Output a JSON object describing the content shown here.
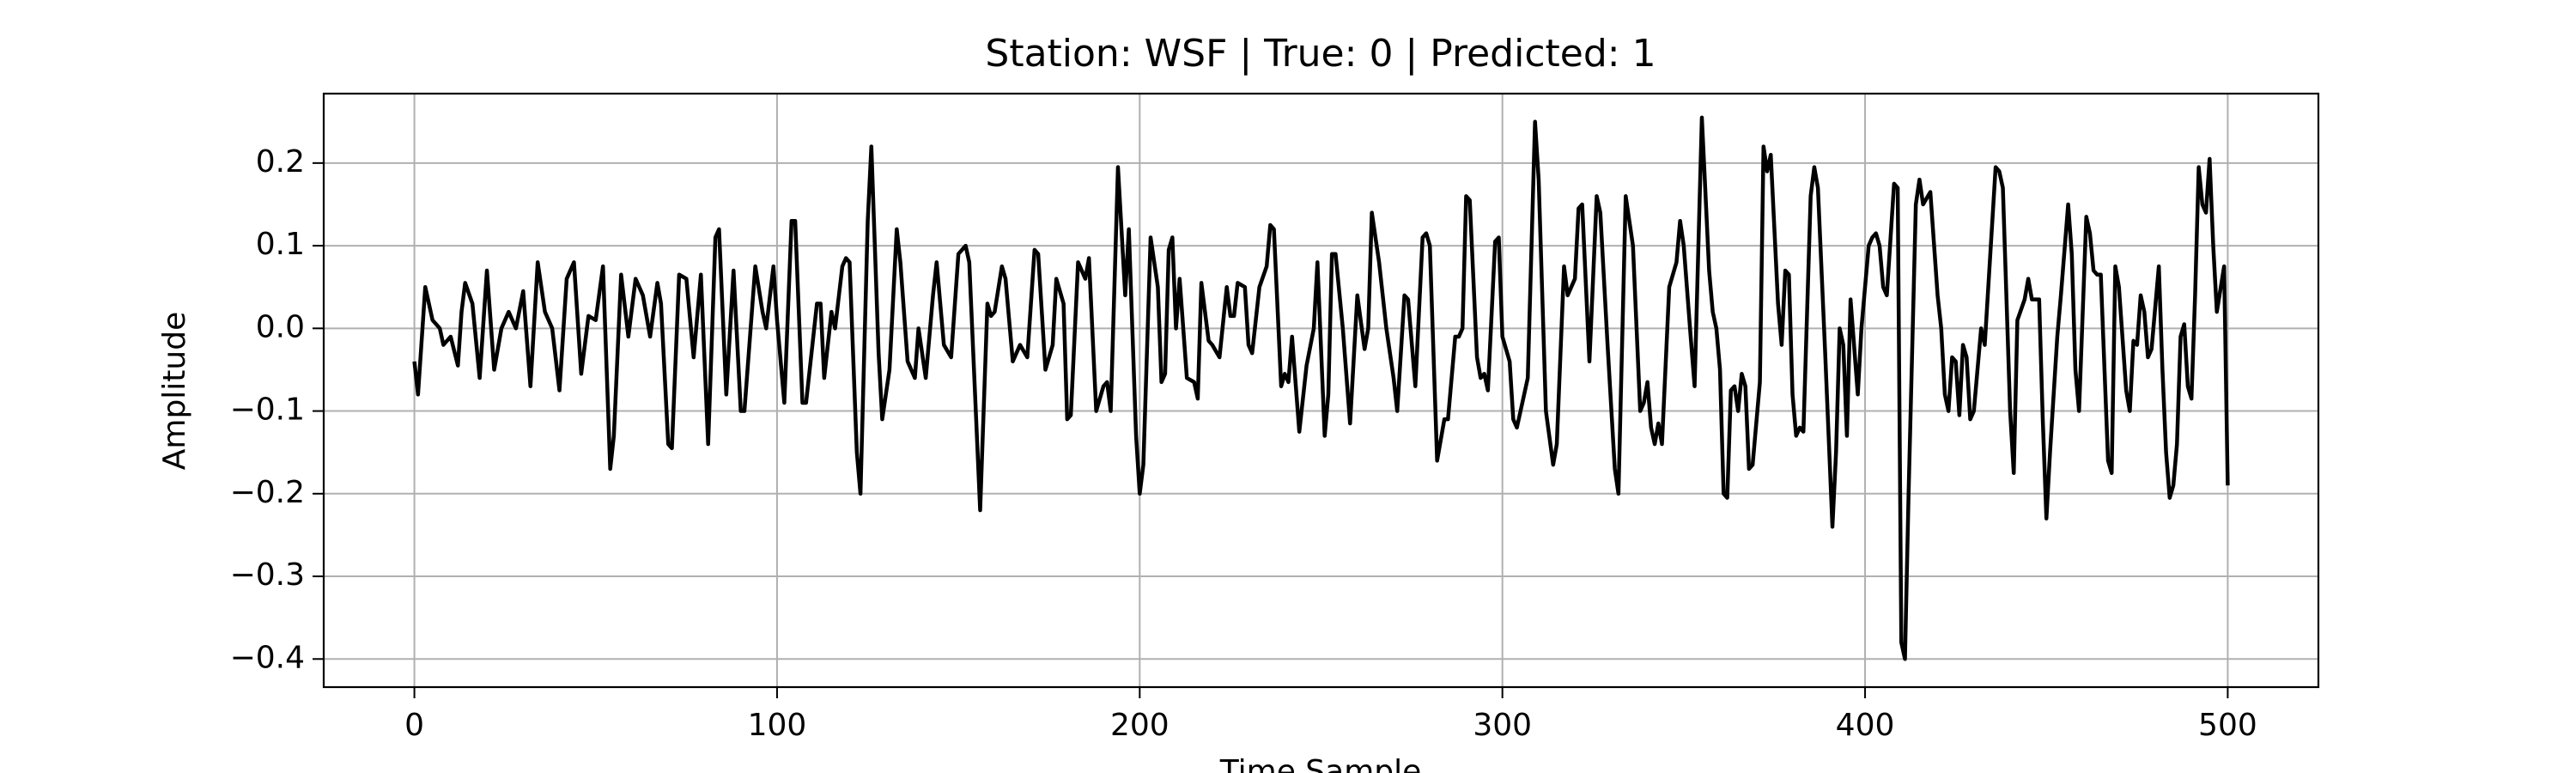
{
  "chart_data": {
    "type": "line",
    "title": "Station: WSF | True: 0 | Predicted: 1",
    "xlabel": "Time Sample",
    "ylabel": "Amplitude",
    "color": "#000000",
    "grid": true,
    "xlim": [
      -25,
      525
    ],
    "ylim": [
      -0.434,
      0.284
    ],
    "xticks": [
      0,
      100,
      200,
      300,
      400,
      500
    ],
    "yticks": [
      {
        "value": -0.4,
        "label": "−0.4"
      },
      {
        "value": -0.3,
        "label": "−0.3"
      },
      {
        "value": -0.2,
        "label": "−0.2"
      },
      {
        "value": -0.1,
        "label": "−0.1"
      },
      {
        "value": 0,
        "label": "0.0"
      },
      0.1,
      0.2
    ],
    "x": [
      0,
      1,
      3,
      5,
      7,
      8,
      10,
      12,
      13,
      14,
      16,
      18,
      20,
      22,
      24,
      26,
      28,
      30,
      32,
      34,
      36,
      38,
      40,
      42,
      44,
      46,
      48,
      50,
      52,
      54,
      55,
      57,
      59,
      61,
      63,
      65,
      67,
      68,
      70,
      71,
      73,
      75,
      77,
      79,
      81,
      83,
      84,
      86,
      88,
      90,
      91,
      94,
      96,
      97,
      99,
      100,
      102,
      104,
      105,
      107,
      108,
      111,
      112,
      113,
      115,
      116,
      118,
      119,
      120,
      122,
      123,
      125,
      126,
      128,
      129,
      131,
      133,
      134,
      136,
      138,
      139,
      141,
      143,
      144,
      146,
      148,
      150,
      152,
      153,
      156,
      158,
      159,
      160,
      162,
      163,
      165,
      167,
      169,
      171,
      172,
      174,
      176,
      177,
      179,
      180,
      181,
      183,
      185,
      186,
      188,
      190,
      191,
      192,
      194,
      196,
      197,
      199,
      200,
      201,
      203,
      205,
      206,
      207,
      208,
      209,
      210,
      211,
      213,
      215,
      216,
      217,
      219,
      220,
      222,
      224,
      225,
      226,
      227,
      229,
      230,
      231,
      233,
      235,
      236,
      237,
      239,
      240,
      241,
      242,
      244,
      246,
      248,
      249,
      251,
      252,
      253,
      254,
      256,
      258,
      260,
      262,
      263,
      264,
      266,
      268,
      270,
      271,
      273,
      274,
      276,
      278,
      279,
      280,
      282,
      284,
      285,
      287,
      288,
      289,
      290,
      291,
      293,
      294,
      295,
      296,
      298,
      299,
      300,
      302,
      303,
      304,
      307,
      309,
      310,
      312,
      314,
      315,
      317,
      318,
      320,
      321,
      322,
      324,
      326,
      327,
      329,
      331,
      332,
      334,
      336,
      338,
      339,
      340,
      341,
      342,
      343,
      344,
      346,
      348,
      349,
      350,
      352,
      353,
      355,
      357,
      358,
      359,
      360,
      361,
      362,
      363,
      364,
      365,
      366,
      367,
      368,
      369,
      371,
      372,
      373,
      374,
      376,
      377,
      378,
      379,
      380,
      381,
      382,
      383,
      385,
      386,
      387,
      389,
      391,
      392,
      393,
      394,
      395,
      396,
      398,
      399,
      401,
      402,
      403,
      404,
      405,
      406,
      408,
      409,
      410,
      411,
      412,
      414,
      415,
      416,
      418,
      420,
      421,
      422,
      423,
      424,
      425,
      426,
      427,
      428,
      429,
      430,
      432,
      433,
      436,
      437,
      438,
      440,
      441,
      442,
      444,
      445,
      446,
      448,
      449,
      450,
      451,
      453,
      454,
      456,
      457,
      458,
      459,
      461,
      462,
      463,
      464,
      465,
      467,
      468,
      469,
      470,
      472,
      473,
      474,
      475,
      476,
      477,
      478,
      479,
      481,
      482,
      483,
      484,
      485,
      486,
      487,
      488,
      489,
      490,
      491,
      492,
      493,
      494,
      495,
      496,
      497,
      499,
      500
    ],
    "values": [
      -0.04,
      -0.08,
      0.05,
      0.01,
      0.0,
      -0.02,
      -0.01,
      -0.045,
      0.02,
      0.055,
      0.03,
      -0.06,
      0.07,
      -0.05,
      0.0,
      0.02,
      0.0,
      0.045,
      -0.07,
      0.08,
      0.02,
      0.0,
      -0.075,
      0.06,
      0.08,
      -0.055,
      0.015,
      0.01,
      0.075,
      -0.17,
      -0.13,
      0.065,
      -0.01,
      0.06,
      0.04,
      -0.01,
      0.055,
      0.03,
      -0.14,
      -0.145,
      0.065,
      0.06,
      -0.035,
      0.065,
      -0.14,
      0.11,
      0.12,
      -0.08,
      0.07,
      -0.1,
      -0.1,
      0.075,
      0.02,
      0.0,
      0.075,
      0.01,
      -0.09,
      0.13,
      0.13,
      -0.09,
      -0.09,
      0.03,
      0.03,
      -0.06,
      0.02,
      0.0,
      0.075,
      0.085,
      0.08,
      -0.15,
      -0.2,
      0.13,
      0.22,
      -0.03,
      -0.11,
      -0.05,
      0.12,
      0.08,
      -0.04,
      -0.06,
      0.0,
      -0.06,
      0.04,
      0.08,
      -0.02,
      -0.035,
      0.09,
      0.1,
      0.08,
      -0.22,
      0.03,
      0.015,
      0.02,
      0.075,
      0.06,
      -0.04,
      -0.02,
      -0.035,
      0.095,
      0.09,
      -0.05,
      -0.02,
      0.06,
      0.03,
      -0.11,
      -0.105,
      0.08,
      0.06,
      0.085,
      -0.1,
      -0.07,
      -0.065,
      -0.1,
      0.195,
      0.04,
      0.12,
      -0.13,
      -0.2,
      -0.165,
      0.11,
      0.05,
      -0.065,
      -0.055,
      0.095,
      0.11,
      0.0,
      0.06,
      -0.06,
      -0.065,
      -0.085,
      0.055,
      -0.015,
      -0.02,
      -0.035,
      0.05,
      0.015,
      0.015,
      0.055,
      0.05,
      -0.02,
      -0.03,
      0.05,
      0.075,
      0.125,
      0.12,
      -0.07,
      -0.055,
      -0.065,
      -0.01,
      -0.125,
      -0.045,
      0.0,
      0.08,
      -0.13,
      -0.08,
      0.09,
      0.09,
      0.0,
      -0.115,
      0.04,
      -0.025,
      0.0,
      0.14,
      0.08,
      0.0,
      -0.06,
      -0.1,
      0.04,
      0.035,
      -0.07,
      0.11,
      0.115,
      0.1,
      -0.16,
      -0.11,
      -0.11,
      -0.01,
      -0.01,
      0.0,
      0.16,
      0.155,
      -0.035,
      -0.06,
      -0.055,
      -0.075,
      0.105,
      0.11,
      -0.01,
      -0.04,
      -0.11,
      -0.12,
      -0.06,
      0.25,
      0.18,
      -0.1,
      -0.165,
      -0.14,
      0.075,
      0.04,
      0.06,
      0.145,
      0.15,
      -0.04,
      0.16,
      0.14,
      -0.02,
      -0.17,
      -0.2,
      0.16,
      0.1,
      -0.1,
      -0.09,
      -0.065,
      -0.12,
      -0.14,
      -0.115,
      -0.14,
      0.05,
      0.08,
      0.13,
      0.1,
      -0.015,
      -0.07,
      0.255,
      0.07,
      0.02,
      0.0,
      -0.05,
      -0.2,
      -0.205,
      -0.075,
      -0.07,
      -0.1,
      -0.055,
      -0.07,
      -0.17,
      -0.165,
      -0.065,
      0.22,
      0.19,
      0.21,
      0.03,
      -0.02,
      0.07,
      0.065,
      -0.08,
      -0.13,
      -0.12,
      -0.125,
      0.16,
      0.195,
      0.17,
      -0.03,
      -0.24,
      -0.15,
      0.0,
      -0.02,
      -0.13,
      0.035,
      -0.08,
      0.0,
      0.1,
      0.11,
      0.115,
      0.1,
      0.05,
      0.04,
      0.175,
      0.17,
      -0.38,
      -0.4,
      -0.2,
      0.15,
      0.18,
      0.15,
      0.165,
      0.04,
      0.0,
      -0.08,
      -0.1,
      -0.035,
      -0.04,
      -0.105,
      -0.02,
      -0.035,
      -0.11,
      -0.1,
      0.0,
      -0.02,
      0.195,
      0.19,
      0.17,
      -0.1,
      -0.175,
      0.01,
      0.035,
      0.06,
      0.035,
      0.035,
      -0.11,
      -0.23,
      -0.15,
      -0.01,
      0.04,
      0.15,
      0.09,
      -0.05,
      -0.1,
      0.135,
      0.115,
      0.07,
      0.065,
      0.065,
      -0.16,
      -0.175,
      0.075,
      0.05,
      -0.075,
      -0.1,
      -0.015,
      -0.02,
      0.04,
      0.02,
      -0.035,
      -0.025,
      0.075,
      -0.05,
      -0.15,
      -0.205,
      -0.19,
      -0.14,
      -0.01,
      0.005,
      -0.07,
      -0.085,
      0.04,
      0.195,
      0.15,
      0.14,
      0.205,
      0.1,
      0.02,
      0.075,
      -0.19
    ]
  }
}
